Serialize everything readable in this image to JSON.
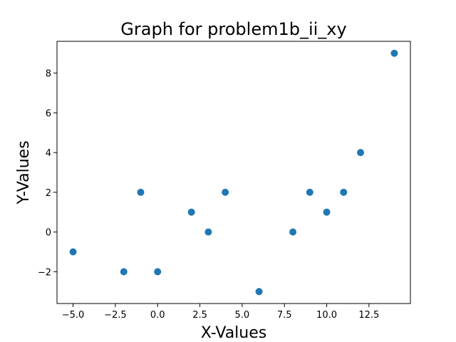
{
  "chart_data": {
    "type": "scatter",
    "title": "Graph for problem1b_ii_xy",
    "xlabel": "X-Values",
    "ylabel": "Y-Values",
    "xlim": [
      -5.95,
      14.95
    ],
    "ylim": [
      -3.6,
      9.6
    ],
    "xticks": [
      -5.0,
      -2.5,
      0.0,
      2.5,
      5.0,
      7.5,
      10.0,
      12.5
    ],
    "xtick_labels": [
      "−5.0",
      "−2.5",
      "0.0",
      "2.5",
      "5.0",
      "7.5",
      "10.0",
      "12.5"
    ],
    "yticks": [
      -2,
      0,
      2,
      4,
      6,
      8
    ],
    "ytick_labels": [
      "−2",
      "0",
      "2",
      "4",
      "6",
      "8"
    ],
    "grid": false,
    "series": [
      {
        "color": "#1f77b4",
        "x": [
          -5,
          -2,
          -1,
          0,
          2,
          3,
          4,
          6,
          8,
          9,
          10,
          11,
          12,
          14
        ],
        "y": [
          -1,
          -2,
          2,
          -2,
          1,
          0,
          2,
          -3,
          0,
          2,
          1,
          2,
          4,
          9
        ]
      }
    ]
  }
}
